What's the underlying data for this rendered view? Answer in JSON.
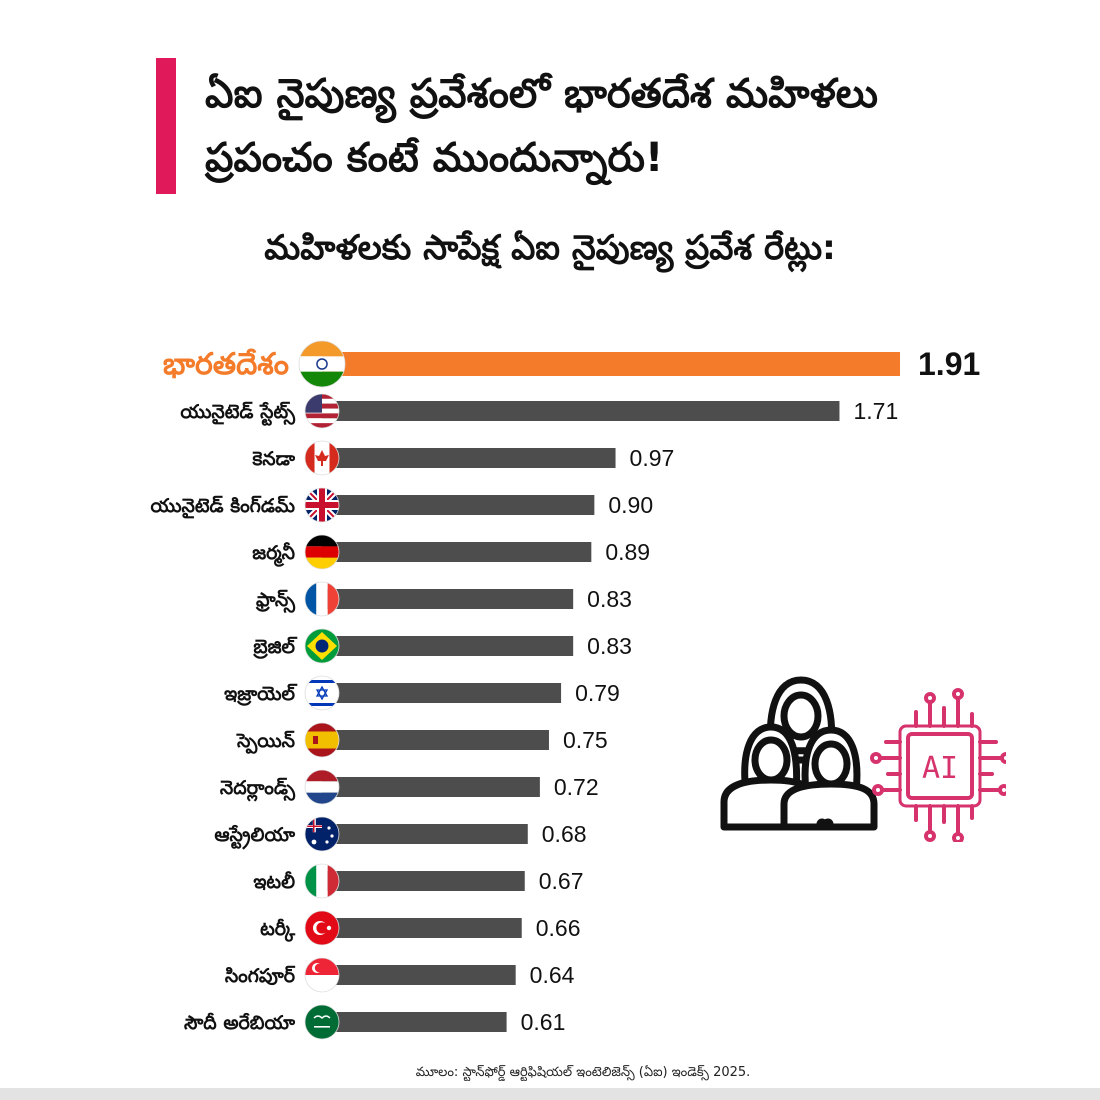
{
  "header": {
    "title_line1": "ఏఐ నైపుణ్య ప్రవేశంలో భారతదేశ మహిళలు",
    "title_line2": "ప్రపంచం కంటే ముందున్నారు!",
    "subtitle": "మహిళలకు సాపేక్ష ఏఐ నైపుణ్య ప్రవేశ రేట్లు:"
  },
  "illustration": {
    "icon": "women-group-icon",
    "ai_chip_label": "AI",
    "ai_chip_icon": "ai-chip-icon"
  },
  "source": "మూలం: స్టాన్‌ఫోర్డ్ ఆర్టిఫిషియల్ ఇంటెలిజెన్స్ (ఏఐ) ఇండెక్స్ 2025.",
  "colors": {
    "highlight": "#f47b2a",
    "bar": "#4d4d4d",
    "accent": "#e0195a",
    "ai_chip": "#d6336c"
  },
  "chart_data": {
    "type": "bar",
    "orientation": "horizontal",
    "categories": [
      "భారతదేశం",
      "యునైటెడ్ స్టేట్స్",
      "కెనడా",
      "యునైటెడ్ కింగ్‌డమ్",
      "జర్మనీ",
      "ఫ్రాన్స్",
      "బ్రెజిల్",
      "ఇజ్రాయెల్",
      "స్పెయిన్",
      "నెదర్లాండ్స్",
      "ఆస్ట్రేలియా",
      "ఇటలీ",
      "టర్కీ",
      "సింగపూర్",
      "సౌదీ అరేబియా"
    ],
    "flags": [
      "india-flag-icon",
      "usa-flag-icon",
      "canada-flag-icon",
      "uk-flag-icon",
      "germany-flag-icon",
      "france-flag-icon",
      "brazil-flag-icon",
      "israel-flag-icon",
      "spain-flag-icon",
      "netherlands-flag-icon",
      "australia-flag-icon",
      "italy-flag-icon",
      "turkey-flag-icon",
      "singapore-flag-icon",
      "saudi-arabia-flag-icon"
    ],
    "values": [
      1.91,
      1.71,
      0.97,
      0.9,
      0.89,
      0.83,
      0.83,
      0.79,
      0.75,
      0.72,
      0.68,
      0.67,
      0.66,
      0.64,
      0.61
    ],
    "value_labels": [
      "1.91",
      "1.71",
      "0.97",
      "0.90",
      "0.89",
      "0.83",
      "0.83",
      "0.79",
      "0.75",
      "0.72",
      "0.68",
      "0.67",
      "0.66",
      "0.64",
      "0.61"
    ],
    "highlight_category": "భారతదేశం",
    "xlim": [
      0,
      1.91
    ],
    "grid": false,
    "legend": "none"
  }
}
